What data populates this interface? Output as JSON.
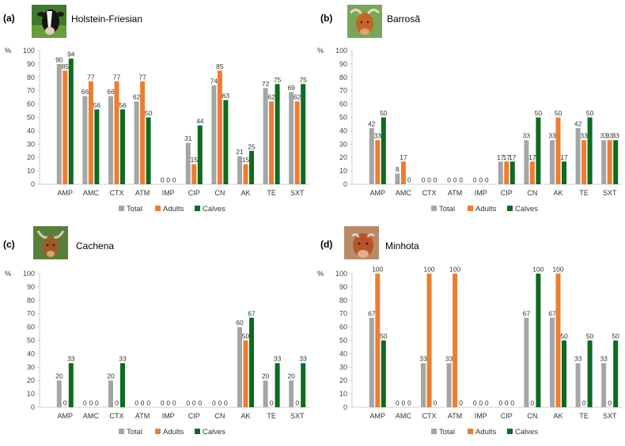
{
  "figure": {
    "legend": [
      {
        "name": "Total",
        "color": "#a5a5a5"
      },
      {
        "name": "Adults",
        "color": "#ed7d31"
      },
      {
        "name": "Calves",
        "color": "#0e6b1f"
      }
    ]
  },
  "chart_data": [
    {
      "type": "bar",
      "panel_label": "(a)",
      "title": "Holstein-Friesian",
      "photo": "holstein-cow-photo",
      "ylabel": "%",
      "ylim": [
        0,
        100
      ],
      "yticks": [
        0,
        10,
        20,
        30,
        40,
        50,
        60,
        70,
        80,
        90,
        100
      ],
      "categories": [
        "AMP",
        "AMC",
        "CTX",
        "ATM",
        "IMP",
        "CIP",
        "CN",
        "AK",
        "TE",
        "SXT"
      ],
      "series": [
        {
          "name": "Total",
          "color": "#a5a5a5",
          "values": [
            90,
            66,
            66,
            62,
            0,
            31,
            74,
            21,
            72,
            69
          ]
        },
        {
          "name": "Adults",
          "color": "#ed7d31",
          "values": [
            85,
            77,
            77,
            77,
            0,
            15,
            85,
            15,
            62,
            62
          ]
        },
        {
          "name": "Calves",
          "color": "#0e6b1f",
          "values": [
            94,
            56,
            56,
            50,
            0,
            44,
            63,
            25,
            75,
            75
          ]
        }
      ]
    },
    {
      "type": "bar",
      "panel_label": "(b)",
      "title": "Barrosã",
      "photo": "barrosa-cow-photo",
      "ylabel": "%",
      "ylim": [
        0,
        100
      ],
      "yticks": [
        0,
        10,
        20,
        30,
        40,
        50,
        60,
        70,
        80,
        90,
        100
      ],
      "categories": [
        "AMP",
        "AMC",
        "CTX",
        "ATM",
        "IMP",
        "CIP",
        "CN",
        "AK",
        "TE",
        "SXT"
      ],
      "series": [
        {
          "name": "Total",
          "color": "#a5a5a5",
          "values": [
            42,
            8,
            0,
            0,
            0,
            17,
            33,
            33,
            42,
            33
          ]
        },
        {
          "name": "Adults",
          "color": "#ed7d31",
          "values": [
            33,
            17,
            0,
            0,
            0,
            17,
            17,
            50,
            33,
            33
          ]
        },
        {
          "name": "Calves",
          "color": "#0e6b1f",
          "values": [
            50,
            0,
            0,
            0,
            0,
            17,
            50,
            17,
            50,
            33
          ]
        }
      ]
    },
    {
      "type": "bar",
      "panel_label": "(c)",
      "title": "Cachena",
      "photo": "cachena-cow-photo",
      "ylabel": "%",
      "ylim": [
        0,
        100
      ],
      "yticks": [
        0,
        10,
        20,
        30,
        40,
        50,
        60,
        70,
        80,
        90,
        100
      ],
      "categories": [
        "AMP",
        "AMC",
        "CTX",
        "ATM",
        "IMP",
        "CIP",
        "CN",
        "AK",
        "TE",
        "SXT"
      ],
      "series": [
        {
          "name": "Total",
          "color": "#a5a5a5",
          "values": [
            20,
            0,
            20,
            0,
            0,
            0,
            0,
            60,
            20,
            20
          ]
        },
        {
          "name": "Adults",
          "color": "#ed7d31",
          "values": [
            0,
            0,
            0,
            0,
            0,
            0,
            0,
            50,
            0,
            0
          ]
        },
        {
          "name": "Calves",
          "color": "#0e6b1f",
          "values": [
            33,
            0,
            33,
            0,
            0,
            0,
            0,
            67,
            33,
            33
          ]
        }
      ]
    },
    {
      "type": "bar",
      "panel_label": "(d)",
      "title": "Minhota",
      "photo": "minhota-cow-photo",
      "ylabel": "%",
      "ylim": [
        0,
        100
      ],
      "yticks": [
        0,
        10,
        20,
        30,
        40,
        50,
        60,
        70,
        80,
        90,
        100
      ],
      "categories": [
        "AMP",
        "AMC",
        "CTX",
        "ATM",
        "IMP",
        "CIP",
        "CN",
        "AK",
        "TE",
        "SXT"
      ],
      "series": [
        {
          "name": "Total",
          "color": "#a5a5a5",
          "values": [
            67,
            0,
            33,
            33,
            0,
            0,
            67,
            67,
            33,
            33
          ]
        },
        {
          "name": "Adults",
          "color": "#ed7d31",
          "values": [
            100,
            0,
            100,
            100,
            0,
            0,
            0,
            100,
            0,
            0
          ]
        },
        {
          "name": "Calves",
          "color": "#0e6b1f",
          "values": [
            50,
            0,
            0,
            0,
            0,
            0,
            100,
            50,
            50,
            50
          ]
        }
      ]
    }
  ]
}
